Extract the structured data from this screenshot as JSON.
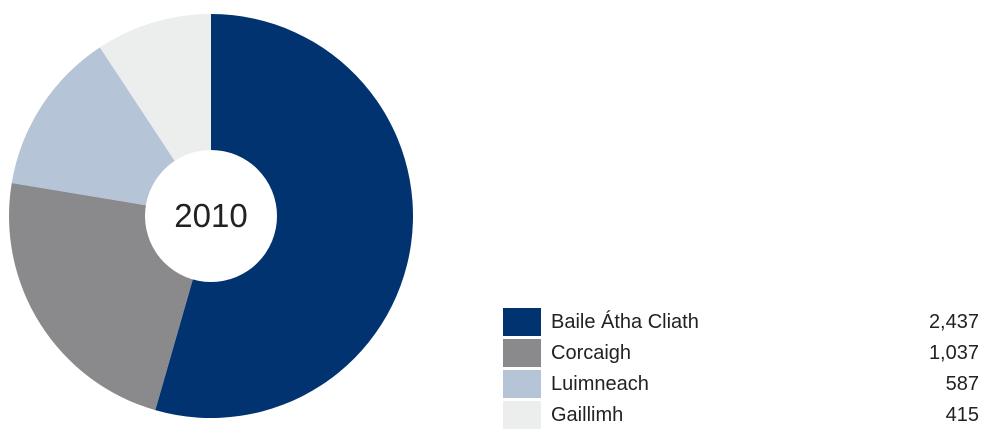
{
  "chart_data": {
    "type": "pie",
    "center_label": "2010",
    "categories": [
      "Baile Átha Cliath",
      "Corcaigh",
      "Luimneach",
      "Gaillimh"
    ],
    "values": [
      2437,
      1037,
      587,
      415
    ],
    "value_labels": [
      "2,437",
      "1,037",
      "587",
      "415"
    ],
    "colors": [
      "#00336f",
      "#8a8a8c",
      "#b6c4d8",
      "#eceded"
    ],
    "legend_position": "bottom-right"
  }
}
